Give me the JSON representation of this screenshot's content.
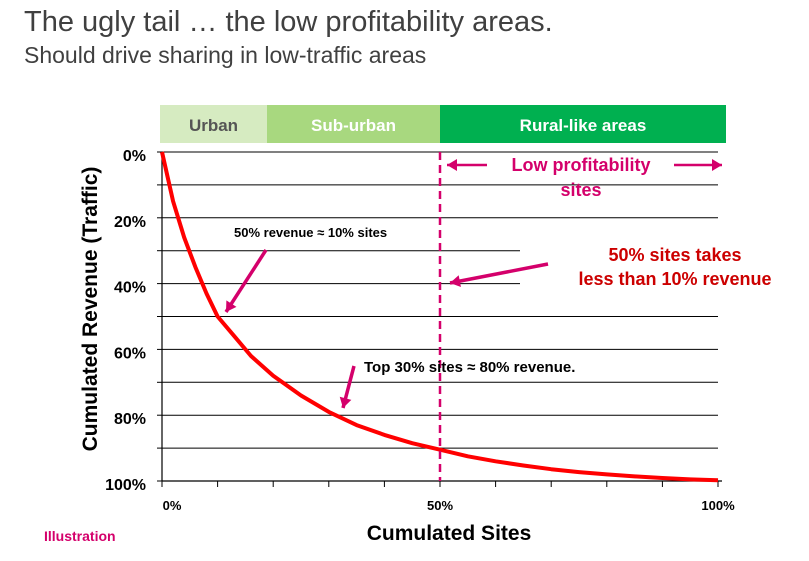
{
  "title": "The ugly tail … the low profitability areas.",
  "subtitle": "Should drive sharing in low-traffic areas",
  "footnote": "Illustration",
  "colors": {
    "curve": "#ff0000",
    "accent": "#d4006b",
    "urban_band": "#d6ebc1",
    "suburban_band": "#a8d87f",
    "rural_band": "#00b050",
    "grid": "#000000",
    "callout_red": "#cc0000"
  },
  "chart_data": {
    "type": "line",
    "xlabel": "Cumulated Sites",
    "ylabel": "Cumulated Revenue (Traffic)",
    "xlim": [
      0,
      100
    ],
    "ylim": [
      0,
      100
    ],
    "y_inverted": true,
    "x_tick_labels": [
      "0%",
      "50%",
      "100%"
    ],
    "x_ticks": [
      0,
      50,
      100
    ],
    "y_tick_labels": [
      "0%",
      "20%",
      "40%",
      "60%",
      "80%",
      "100%"
    ],
    "y_ticks": [
      0,
      20,
      40,
      60,
      80,
      100
    ],
    "grid": true,
    "series": [
      {
        "x": [
          0,
          2,
          4,
          6,
          8,
          10,
          13,
          16,
          20,
          25,
          30,
          35,
          40,
          45,
          50,
          55,
          60,
          65,
          70,
          75,
          80,
          85,
          90,
          95,
          100
        ],
        "y": [
          0,
          15,
          26,
          35,
          43,
          50,
          56,
          62,
          68,
          74,
          79,
          83,
          86,
          88.5,
          90.5,
          92.5,
          94,
          95.3,
          96.4,
          97.3,
          98,
          98.6,
          99.1,
          99.5,
          99.8
        ]
      }
    ],
    "bands": [
      {
        "label": "Urban",
        "from": 0,
        "to": 19
      },
      {
        "label": "Sub-urban",
        "from": 19,
        "to": 50
      },
      {
        "label": "Rural-like areas",
        "from": 50,
        "to": 100
      }
    ],
    "marker_x": 50,
    "annotations": {
      "low_profit_line1": "Low profitability",
      "low_profit_line2": "sites",
      "half_sites_line1": "50% sites takes",
      "half_sites_line2": "less than 10% revenue",
      "fifty_revenue": "50% revenue ≈ 10% sites",
      "top30": "Top 30% sites ≈ 80% revenue."
    }
  }
}
